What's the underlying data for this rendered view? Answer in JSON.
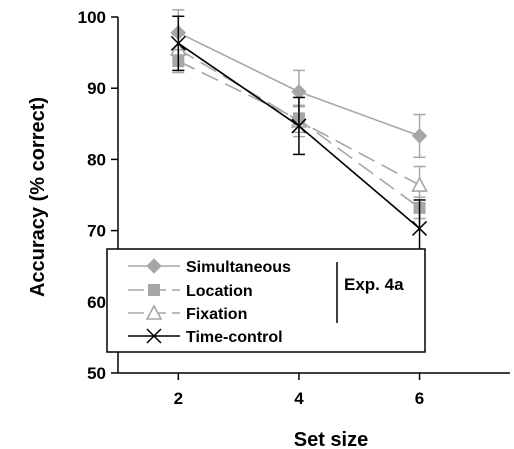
{
  "chart_data": {
    "type": "line",
    "title": "",
    "xlabel": "Set size",
    "ylabel": "Accuracy (% correct)",
    "xlim": [
      1,
      7.5
    ],
    "ylim": [
      50,
      100
    ],
    "x": [
      2,
      4,
      6
    ],
    "x_ticks": [
      "2",
      "4",
      "6"
    ],
    "y_ticks": [
      "50",
      "60",
      "70",
      "80",
      "90",
      "100"
    ],
    "grid": false,
    "legend_position": "bottom-left",
    "legend_group_label": "Exp. 4a",
    "series": [
      {
        "name": "Simultaneous",
        "values": [
          97.8,
          89.5,
          83.3
        ],
        "errors": [
          3.2,
          3.0,
          3.0
        ],
        "color": "#a6a6a6",
        "dash": "solid",
        "marker": "diamond"
      },
      {
        "name": "Location",
        "values": [
          93.8,
          85.6,
          73.2
        ],
        "errors": [
          1.6,
          1.8,
          1.5
        ],
        "color": "#a6a6a6",
        "dash": "dashed",
        "marker": "square"
      },
      {
        "name": "Fixation",
        "values": [
          95.5,
          85.4,
          76.4
        ],
        "errors": [
          2.0,
          2.2,
          2.6
        ],
        "color": "#a6a6a6",
        "dash": "dashed",
        "marker": "triangle"
      },
      {
        "name": "Time-control",
        "values": [
          96.3,
          84.7,
          70.3
        ],
        "errors": [
          3.8,
          4.0,
          4.0
        ],
        "color": "#000000",
        "dash": "solid",
        "marker": "x"
      }
    ]
  }
}
